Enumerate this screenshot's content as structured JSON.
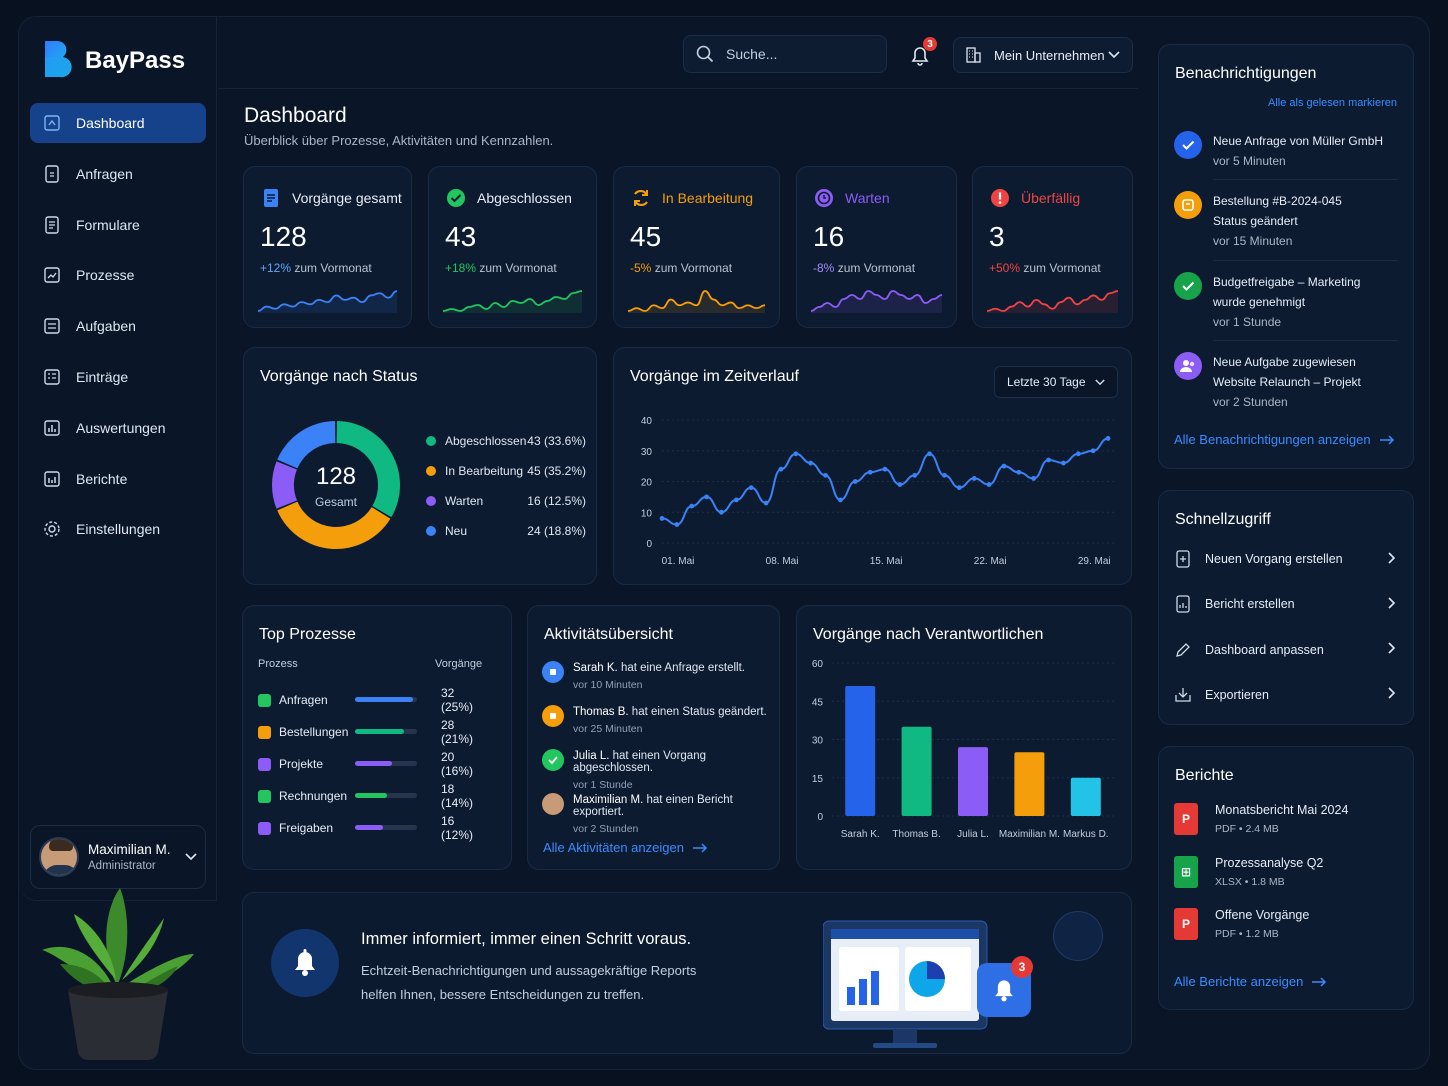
{
  "app": {
    "name": "BayPass"
  },
  "sidebar": {
    "items": [
      {
        "label": "Dashboard",
        "icon": "dashboard-icon"
      },
      {
        "label": "Anfragen",
        "icon": "request-icon"
      },
      {
        "label": "Formulare",
        "icon": "form-icon"
      },
      {
        "label": "Prozesse",
        "icon": "process-icon"
      },
      {
        "label": "Aufgaben",
        "icon": "task-icon"
      },
      {
        "label": "Einträge",
        "icon": "entries-icon"
      },
      {
        "label": "Auswertungen",
        "icon": "analytics-icon"
      },
      {
        "label": "Berichte",
        "icon": "reports-icon"
      },
      {
        "label": "Einstellungen",
        "icon": "gear-icon"
      }
    ],
    "user": {
      "name": "Maximilian M.",
      "role": "Administrator"
    }
  },
  "topbar": {
    "search_placeholder": "Suche...",
    "notification_count": "3",
    "company": "Mein Unternehmen"
  },
  "page": {
    "title": "Dashboard",
    "subtitle": "Überblick über Prozesse, Aktivitäten und Kennzahlen."
  },
  "kpis": [
    {
      "label": "Vorgänge gesamt",
      "value": "128",
      "change": "+12%",
      "suffix": "zum Vormonat",
      "color": "#3b82f6"
    },
    {
      "label": "Abgeschlossen",
      "value": "43",
      "change": "+18%",
      "suffix": "zum Vormonat",
      "color": "#22c55e"
    },
    {
      "label": "In Bearbeitung",
      "value": "45",
      "change": "-5%",
      "suffix": "zum Vormonat",
      "color": "#f59e0b"
    },
    {
      "label": "Warten",
      "value": "16",
      "change": "-8%",
      "suffix": "zum Vormonat",
      "color": "#8b5cf6"
    },
    {
      "label": "Überfällig",
      "value": "3",
      "change": "+50%",
      "suffix": "zum Vormonat",
      "color": "#ef4444"
    }
  ],
  "status_card": {
    "title": "Vorgänge nach Status",
    "center_value": "128",
    "center_label": "Gesamt",
    "legend": [
      {
        "label": "Abgeschlossen",
        "value": "43 (33.6%)",
        "color": "#10b981"
      },
      {
        "label": "In Bearbeitung",
        "value": "45 (35.2%)",
        "color": "#f59e0b"
      },
      {
        "label": "Warten",
        "value": "16 (12.5%)",
        "color": "#8b5cf6"
      },
      {
        "label": "Neu",
        "value": "24 (18.8%)",
        "color": "#3b82f6"
      }
    ]
  },
  "timeline_card": {
    "title": "Vorgänge im Zeitverlauf",
    "range": "Letzte 30 Tage"
  },
  "top_processes": {
    "title": "Top Prozesse",
    "col_process": "Prozess",
    "col_count": "Vorgänge",
    "rows": [
      {
        "name": "Anfragen",
        "value": "32 (25%)",
        "share": 0.25,
        "color": "#22c55e",
        "bar": "#3b82f6"
      },
      {
        "name": "Bestellungen",
        "value": "28 (21%)",
        "share": 0.21,
        "color": "#f59e0b",
        "bar": "#10b981"
      },
      {
        "name": "Projekte",
        "value": "20 (16%)",
        "share": 0.16,
        "color": "#8b5cf6",
        "bar": "#8b5cf6"
      },
      {
        "name": "Rechnungen",
        "value": "18 (14%)",
        "share": 0.14,
        "color": "#22c55e",
        "bar": "#22c55e"
      },
      {
        "name": "Freigaben",
        "value": "16 (12%)",
        "share": 0.12,
        "color": "#8b5cf6",
        "bar": "#8b5cf6"
      }
    ]
  },
  "activity": {
    "title": "Aktivitätsübersicht",
    "items": [
      {
        "who": "Sarah K.",
        "what": " hat eine Anfrage erstellt.",
        "when": "vor 10 Minuten",
        "color": "#3b82f6"
      },
      {
        "who": "Thomas B.",
        "what": " hat einen Status geändert.",
        "when": "vor 25 Minuten",
        "color": "#f59e0b"
      },
      {
        "who": "Julia L.",
        "what": " hat einen Vorgang abgeschlossen.",
        "when": "vor 1 Stunde",
        "color": "#22c55e"
      },
      {
        "who": "Maximilian M.",
        "what": " hat einen Bericht exportiert.",
        "when": "vor 2 Stunden",
        "color": "#c79a78"
      }
    ],
    "link": "Alle Aktivitäten anzeigen"
  },
  "owners_card": {
    "title": "Vorgänge nach Verantwortlichen"
  },
  "banner": {
    "title": "Immer informiert, immer einen Schritt voraus.",
    "text1": "Echtzeit-Benachrichtigungen und aussagekräftige Reports",
    "text2": "helfen Ihnen, bessere Entscheidungen zu treffen.",
    "badge": "3"
  },
  "notifications": {
    "title": "Benachrichtigungen",
    "mark_all": "Alle als gelesen markieren",
    "items": [
      {
        "lines": [
          "Neue Anfrage von Müller GmbH"
        ],
        "time": "vor 5 Minuten",
        "color": "#2563eb"
      },
      {
        "lines": [
          "Bestellung #B-2024-045",
          "Status geändert"
        ],
        "time": "vor 15 Minuten",
        "color": "#f59e0b"
      },
      {
        "lines": [
          "Budgetfreigabe – Marketing",
          "wurde genehmigt"
        ],
        "time": "vor 1 Stunde",
        "color": "#16a34a"
      },
      {
        "lines": [
          "Neue Aufgabe zugewiesen",
          "Website Relaunch – Projekt"
        ],
        "time": "vor 2 Stunden",
        "color": "#8b5cf6"
      }
    ],
    "link": "Alle Benachrichtigungen anzeigen"
  },
  "quick_access": {
    "title": "Schnellzugriff",
    "items": [
      {
        "label": "Neuen Vorgang erstellen",
        "icon": "new-document-icon"
      },
      {
        "label": "Bericht erstellen",
        "icon": "report-add-icon"
      },
      {
        "label": "Dashboard anpassen",
        "icon": "edit-icon"
      },
      {
        "label": "Exportieren",
        "icon": "export-icon"
      }
    ]
  },
  "reports": {
    "title": "Berichte",
    "items": [
      {
        "name": "Monatsbericht Mai 2024",
        "type": "PDF",
        "size": "2.4 MB",
        "glyph": "P",
        "color": "#e53935"
      },
      {
        "name": "Prozessanalyse Q2",
        "type": "XLSX",
        "size": "1.8 MB",
        "glyph": "⊞",
        "color": "#16a34a"
      },
      {
        "name": "Offene Vorgänge",
        "type": "PDF",
        "size": "1.2 MB",
        "glyph": "P",
        "color": "#e53935"
      }
    ],
    "link": "Alle Berichte anzeigen"
  },
  "chart_data": [
    {
      "type": "pie",
      "title": "Vorgänge nach Status",
      "categories": [
        "Abgeschlossen",
        "In Bearbeitung",
        "Warten",
        "Neu"
      ],
      "values": [
        43,
        45,
        16,
        24
      ],
      "colors": [
        "#10b981",
        "#f59e0b",
        "#8b5cf6",
        "#3b82f6"
      ]
    },
    {
      "type": "line",
      "title": "Vorgänge im Zeitverlauf",
      "x_ticks": [
        "01. Mai",
        "08. Mai",
        "15. Mai",
        "22. Mai",
        "29. Mai"
      ],
      "y_ticks": [
        0,
        10,
        20,
        30,
        40
      ],
      "ylim": [
        0,
        40
      ],
      "x": [
        1,
        2,
        3,
        4,
        5,
        6,
        7,
        8,
        9,
        10,
        11,
        12,
        13,
        14,
        15,
        16,
        17,
        18,
        19,
        20,
        21,
        22,
        23,
        24,
        25,
        26,
        27,
        28,
        29,
        30,
        31
      ],
      "values": [
        8,
        6,
        12,
        15,
        10,
        14,
        18,
        13,
        24,
        29,
        26,
        22,
        14,
        20,
        23,
        24,
        19,
        22,
        29,
        22,
        18,
        21,
        19,
        25,
        23,
        21,
        27,
        26,
        29,
        30,
        34
      ],
      "color": "#3b82f6"
    },
    {
      "type": "bar",
      "title": "Vorgänge nach Verantwortlichen",
      "categories": [
        "Sarah K.",
        "Thomas B.",
        "Julia L.",
        "Maximilian M.",
        "Markus D."
      ],
      "values": [
        51,
        35,
        27,
        25,
        15
      ],
      "y_ticks": [
        0,
        15,
        30,
        45,
        60
      ],
      "ylim": [
        0,
        60
      ],
      "colors": [
        "#2563eb",
        "#10b981",
        "#8b5cf6",
        "#f59e0b",
        "#22c3e6"
      ]
    }
  ]
}
